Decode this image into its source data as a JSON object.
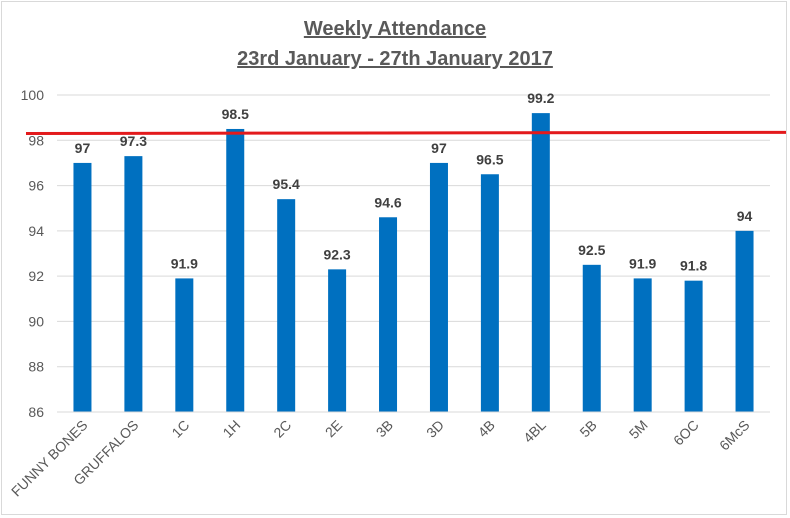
{
  "chart_data": {
    "type": "bar",
    "title": "Weekly Attendance",
    "subtitle": "23rd January - 27th January 2017",
    "categories": [
      "FUNNY BONES",
      "GRUFFALOS",
      "1C",
      "1H",
      "2C",
      "2E",
      "3B",
      "3D",
      "4B",
      "4BL",
      "5B",
      "5M",
      "6OC",
      "6McS"
    ],
    "values": [
      97,
      97.3,
      91.9,
      98.5,
      95.4,
      92.3,
      94.6,
      97,
      96.5,
      99.2,
      92.5,
      91.9,
      91.8,
      94
    ],
    "data_labels": [
      "97",
      "97.3",
      "91.9",
      "98.5",
      "95.4",
      "92.3",
      "94.6",
      "97",
      "96.5",
      "99.2",
      "92.5",
      "91.9",
      "91.8",
      "94"
    ],
    "ylim": [
      86,
      100
    ],
    "yticks": [
      "86",
      "88",
      "90",
      "92",
      "94",
      "96",
      "98",
      "100"
    ],
    "ytick_values": [
      86,
      88,
      90,
      92,
      94,
      96,
      98,
      100
    ],
    "target_line_start": 98.3,
    "target_line_end": 98.35,
    "grid": true,
    "bar_color": "#0070c0",
    "target_line_color": "#e31a1c",
    "xlabel": "",
    "ylabel": ""
  }
}
